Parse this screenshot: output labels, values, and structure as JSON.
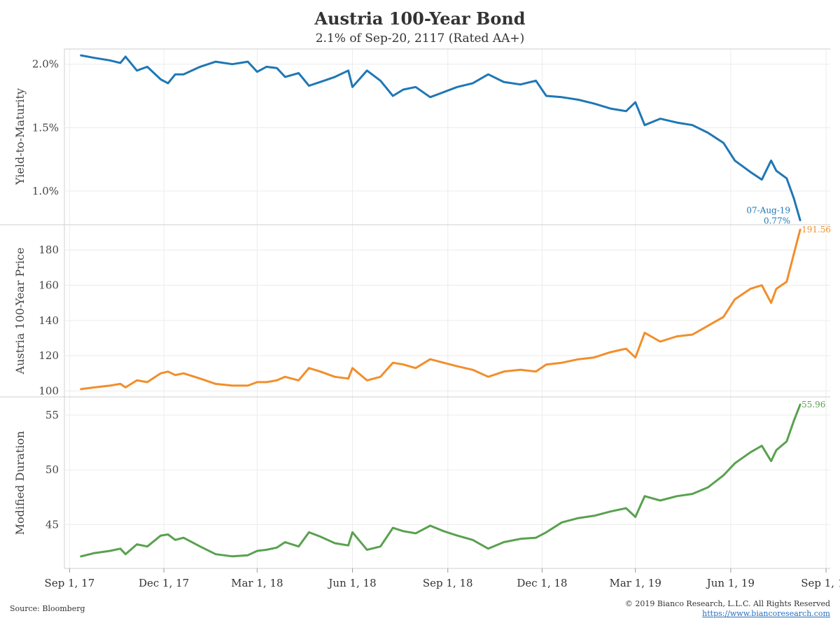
{
  "header": {
    "title": "Austria 100-Year Bond",
    "subtitle": "2.1% of Sep-20, 2117 (Rated AA+)"
  },
  "footer": {
    "source": "Source: Bloomberg",
    "copyright": "© 2019 Bianco Research, L.L.C. All Rights Reserved",
    "url": "https://www.biancoresearch.com"
  },
  "colors": {
    "yield": "#1f77b4",
    "price": "#f28e2b",
    "duration": "#59a14f",
    "grid": "#ececec",
    "axis": "#cfcfcf",
    "text": "#555555"
  },
  "chart_data": {
    "type": "line",
    "x_axis": {
      "ticks": [
        "2017-09-01",
        "2017-12-01",
        "2018-03-01",
        "2018-06-01",
        "2018-09-01",
        "2018-12-01",
        "2019-03-01",
        "2019-06-01",
        "2019-09-01"
      ],
      "tick_labels": [
        "Sep 1, 17",
        "Dec 1, 17",
        "Mar 1, 18",
        "Jun 1, 18",
        "Sep 1, 18",
        "Dec 1, 18",
        "Mar 1, 19",
        "Jun 1, 19",
        "Sep 1, 19"
      ],
      "range": [
        "2017-08-27",
        "2019-09-05"
      ]
    },
    "panels": [
      {
        "name": "yield",
        "ylabel": "Yield-to-Maturity",
        "ylim": [
          0.74,
          2.12
        ],
        "ticks": [
          1.0,
          1.5,
          2.0
        ],
        "tick_labels": [
          "1.0%",
          "1.5%",
          "2.0%"
        ],
        "series": {
          "x": [
            "2017-09-12",
            "2017-09-25",
            "2017-10-10",
            "2017-10-20",
            "2017-10-25",
            "2017-11-05",
            "2017-11-15",
            "2017-11-28",
            "2017-12-05",
            "2017-12-12",
            "2017-12-20",
            "2018-01-05",
            "2018-01-20",
            "2018-02-05",
            "2018-02-20",
            "2018-03-01",
            "2018-03-10",
            "2018-03-20",
            "2018-03-28",
            "2018-04-10",
            "2018-04-20",
            "2018-05-01",
            "2018-05-15",
            "2018-05-28",
            "2018-06-01",
            "2018-06-15",
            "2018-06-28",
            "2018-07-10",
            "2018-07-20",
            "2018-08-01",
            "2018-08-15",
            "2018-08-28",
            "2018-09-10",
            "2018-09-25",
            "2018-10-10",
            "2018-10-25",
            "2018-11-10",
            "2018-11-25",
            "2018-12-05",
            "2018-12-20",
            "2019-01-05",
            "2019-01-20",
            "2019-02-05",
            "2019-02-20",
            "2019-03-01",
            "2019-03-10",
            "2019-03-25",
            "2019-04-10",
            "2019-04-25",
            "2019-05-10",
            "2019-05-25",
            "2019-06-05",
            "2019-06-20",
            "2019-07-01",
            "2019-07-10",
            "2019-07-15",
            "2019-07-25",
            "2019-08-01",
            "2019-08-07"
          ],
          "y": [
            2.07,
            2.05,
            2.03,
            2.01,
            2.06,
            1.95,
            1.98,
            1.88,
            1.85,
            1.92,
            1.92,
            1.98,
            2.02,
            2.0,
            2.02,
            1.94,
            1.98,
            1.97,
            1.9,
            1.93,
            1.83,
            1.86,
            1.9,
            1.95,
            1.82,
            1.95,
            1.87,
            1.75,
            1.8,
            1.82,
            1.74,
            1.78,
            1.82,
            1.85,
            1.92,
            1.86,
            1.84,
            1.87,
            1.75,
            1.74,
            1.72,
            1.69,
            1.65,
            1.63,
            1.7,
            1.52,
            1.57,
            1.54,
            1.52,
            1.46,
            1.38,
            1.24,
            1.15,
            1.09,
            1.24,
            1.16,
            1.1,
            0.94,
            0.77
          ]
        },
        "end_label": [
          "07-Aug-19",
          "0.77%"
        ]
      },
      {
        "name": "price",
        "ylabel": "Austria 100-Year Price",
        "ylim": [
          97,
          194
        ],
        "ticks": [
          100,
          120,
          140,
          160,
          180
        ],
        "tick_labels": [
          "100",
          "120",
          "140",
          "160",
          "180"
        ],
        "series": {
          "x": [
            "2017-09-12",
            "2017-09-25",
            "2017-10-10",
            "2017-10-20",
            "2017-10-25",
            "2017-11-05",
            "2017-11-15",
            "2017-11-28",
            "2017-12-05",
            "2017-12-12",
            "2017-12-20",
            "2018-01-05",
            "2018-01-20",
            "2018-02-05",
            "2018-02-20",
            "2018-03-01",
            "2018-03-10",
            "2018-03-20",
            "2018-03-28",
            "2018-04-10",
            "2018-04-20",
            "2018-05-01",
            "2018-05-15",
            "2018-05-28",
            "2018-06-01",
            "2018-06-15",
            "2018-06-28",
            "2018-07-10",
            "2018-07-20",
            "2018-08-01",
            "2018-08-15",
            "2018-08-28",
            "2018-09-10",
            "2018-09-25",
            "2018-10-10",
            "2018-10-25",
            "2018-11-10",
            "2018-11-25",
            "2018-12-05",
            "2018-12-20",
            "2019-01-05",
            "2019-01-20",
            "2019-02-05",
            "2019-02-20",
            "2019-03-01",
            "2019-03-10",
            "2019-03-25",
            "2019-04-10",
            "2019-04-25",
            "2019-05-10",
            "2019-05-25",
            "2019-06-05",
            "2019-06-20",
            "2019-07-01",
            "2019-07-10",
            "2019-07-15",
            "2019-07-25",
            "2019-08-01",
            "2019-08-07"
          ],
          "y": [
            101,
            102,
            103,
            104,
            102,
            106,
            105,
            110,
            111,
            109,
            110,
            107,
            104,
            103,
            103,
            105,
            105,
            106,
            108,
            106,
            113,
            111,
            108,
            107,
            113,
            106,
            108,
            116,
            115,
            113,
            118,
            116,
            114,
            112,
            108,
            111,
            112,
            111,
            115,
            116,
            118,
            119,
            122,
            124,
            119,
            133,
            128,
            131,
            132,
            137,
            142,
            152,
            158,
            160,
            150,
            158,
            162,
            178,
            191.56
          ]
        },
        "end_label": [
          "191.56"
        ]
      },
      {
        "name": "duration",
        "ylabel": "Modified Duration",
        "ylim": [
          41.0,
          56.6
        ],
        "ticks": [
          45,
          50,
          55
        ],
        "tick_labels": [
          "45",
          "50",
          "55"
        ],
        "series": {
          "x": [
            "2017-09-12",
            "2017-09-25",
            "2017-10-10",
            "2017-10-20",
            "2017-10-25",
            "2017-11-05",
            "2017-11-15",
            "2017-11-28",
            "2017-12-05",
            "2017-12-12",
            "2017-12-20",
            "2018-01-05",
            "2018-01-20",
            "2018-02-05",
            "2018-02-20",
            "2018-03-01",
            "2018-03-10",
            "2018-03-20",
            "2018-03-28",
            "2018-04-10",
            "2018-04-20",
            "2018-05-01",
            "2018-05-15",
            "2018-05-28",
            "2018-06-01",
            "2018-06-15",
            "2018-06-28",
            "2018-07-10",
            "2018-07-20",
            "2018-08-01",
            "2018-08-15",
            "2018-08-28",
            "2018-09-10",
            "2018-09-25",
            "2018-10-10",
            "2018-10-25",
            "2018-11-10",
            "2018-11-25",
            "2018-12-05",
            "2018-12-20",
            "2019-01-05",
            "2019-01-20",
            "2019-02-05",
            "2019-02-20",
            "2019-03-01",
            "2019-03-10",
            "2019-03-25",
            "2019-04-10",
            "2019-04-25",
            "2019-05-10",
            "2019-05-25",
            "2019-06-05",
            "2019-06-20",
            "2019-07-01",
            "2019-07-10",
            "2019-07-15",
            "2019-07-25",
            "2019-08-01",
            "2019-08-07"
          ],
          "y": [
            42.1,
            42.4,
            42.6,
            42.8,
            42.3,
            43.2,
            43.0,
            44.0,
            44.1,
            43.6,
            43.8,
            43.0,
            42.3,
            42.1,
            42.2,
            42.6,
            42.7,
            42.9,
            43.4,
            43.0,
            44.3,
            43.9,
            43.3,
            43.1,
            44.3,
            42.7,
            43.0,
            44.7,
            44.4,
            44.2,
            44.9,
            44.4,
            44.0,
            43.6,
            42.8,
            43.4,
            43.7,
            43.8,
            44.3,
            45.2,
            45.6,
            45.8,
            46.2,
            46.5,
            45.7,
            47.6,
            47.2,
            47.6,
            47.8,
            48.4,
            49.5,
            50.6,
            51.6,
            52.2,
            50.8,
            51.8,
            52.6,
            54.5,
            55.96
          ]
        },
        "end_label": [
          "55.96"
        ]
      }
    ]
  }
}
